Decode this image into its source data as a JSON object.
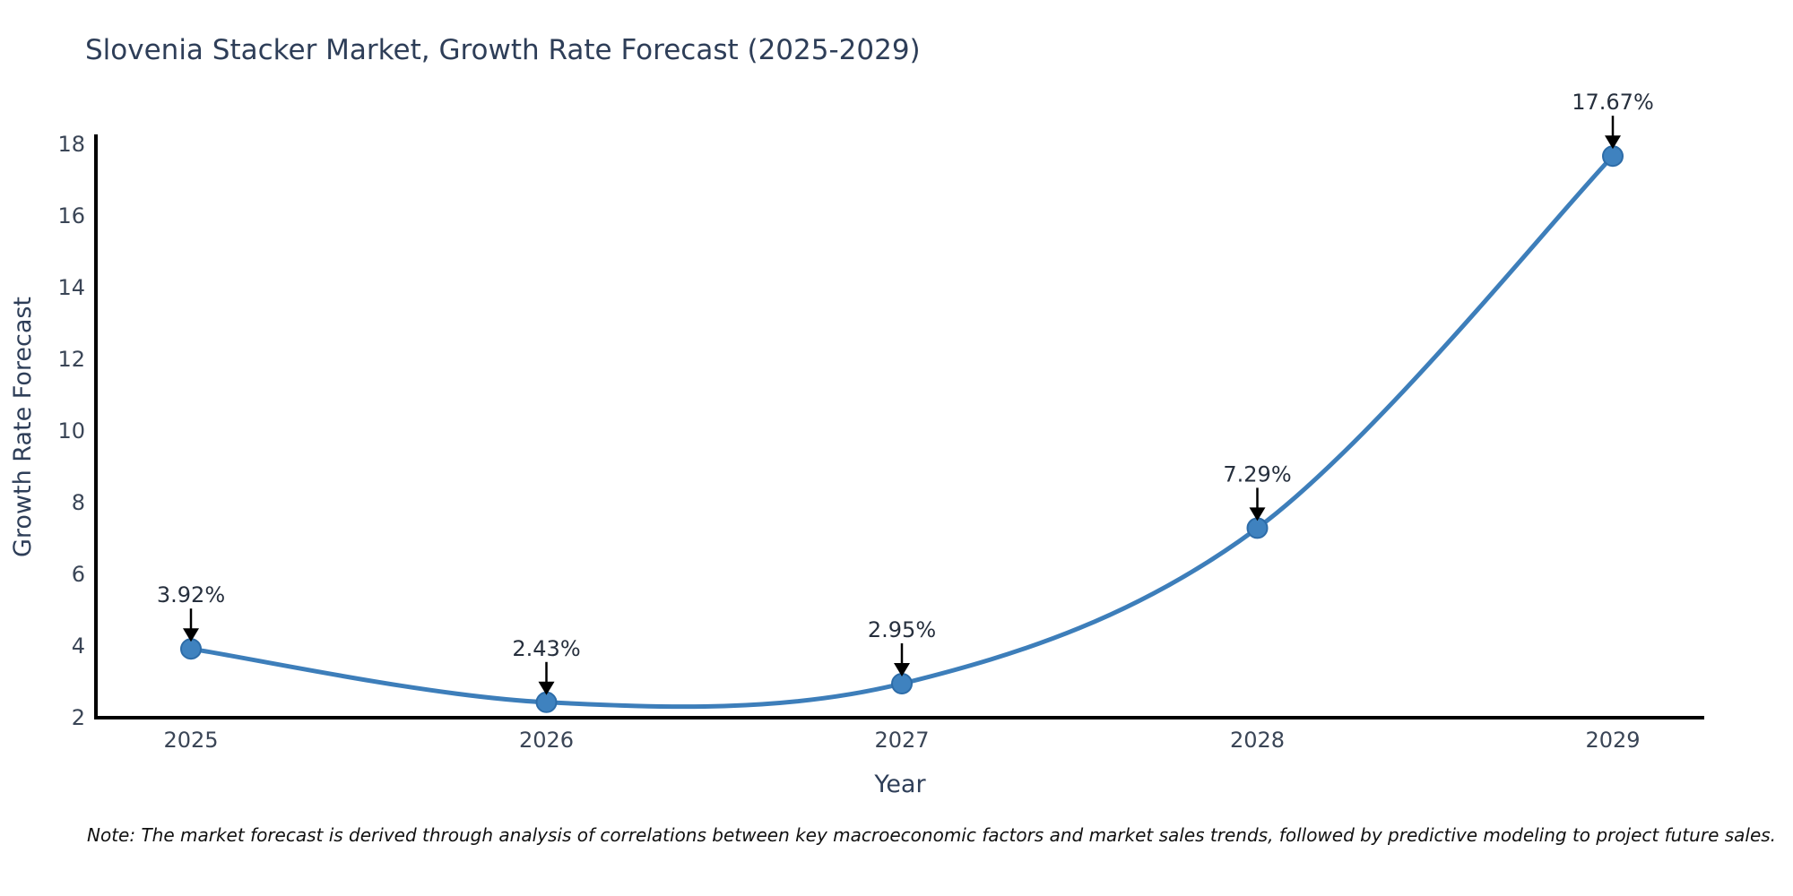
{
  "title": "Slovenia Stacker Market, Growth Rate Forecast (2025-2029)",
  "note": "Note: The market forecast is derived through analysis of correlations between key macroeconomic factors and market sales trends, followed by predictive modeling to project future sales.",
  "chart_data": {
    "type": "line",
    "title": "Slovenia Stacker Market, Growth Rate Forecast (2025-2029)",
    "xlabel": "Year",
    "ylabel": "Growth Rate Forecast",
    "x": [
      "2025",
      "2026",
      "2027",
      "2028",
      "2029"
    ],
    "values": [
      3.92,
      2.43,
      2.95,
      7.29,
      17.67
    ],
    "point_labels": [
      "3.92%",
      "2.43%",
      "2.95%",
      "7.29%",
      "17.67%"
    ],
    "ylim": [
      2,
      18
    ],
    "yticks": [
      2,
      4,
      6,
      8,
      10,
      12,
      14,
      16,
      18
    ],
    "grid": false,
    "legend_position": "none",
    "line_color": "#3d7eba",
    "marker_color": "#3f82bf",
    "marker_edge_color": "#2d6ca8",
    "annotation_arrow_color": "#000000",
    "annotation_text_color": "#262f3d",
    "tick_label_color": "#3a4556",
    "axis_label_color": "#2e3e58",
    "spine_color": "#000000"
  }
}
